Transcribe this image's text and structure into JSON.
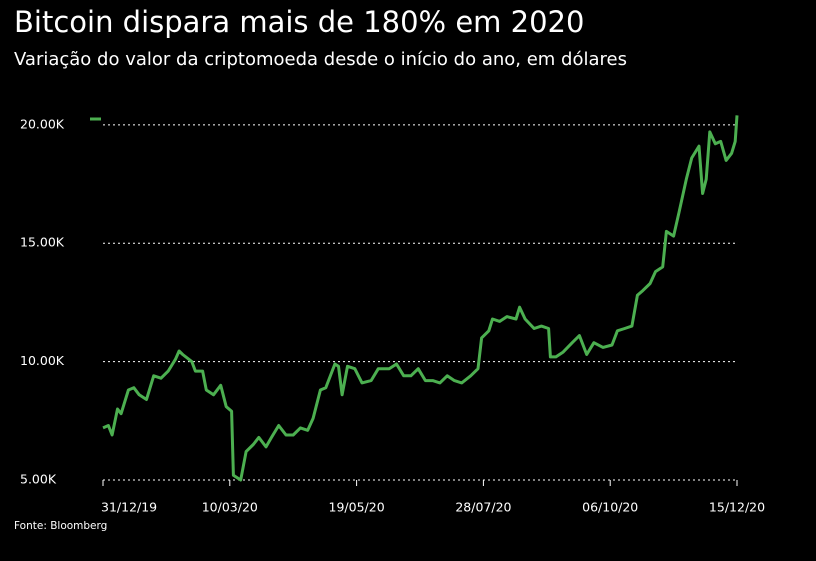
{
  "chart_data": {
    "type": "line",
    "title": "Bitcoin dispara mais de 180% em 2020",
    "subtitle": "Variação do valor da criptomoeda desde o início do ano, em dólares",
    "source": "Fonte: Bloomberg",
    "x": [
      "2019-12-31",
      "2020-01-03",
      "2020-01-05",
      "2020-01-08",
      "2020-01-10",
      "2020-01-14",
      "2020-01-17",
      "2020-01-20",
      "2020-01-24",
      "2020-01-28",
      "2020-02-01",
      "2020-02-05",
      "2020-02-09",
      "2020-02-11",
      "2020-02-13",
      "2020-02-18",
      "2020-02-20",
      "2020-02-24",
      "2020-02-26",
      "2020-03-01",
      "2020-03-05",
      "2020-03-08",
      "2020-03-11",
      "2020-03-12",
      "2020-03-16",
      "2020-03-19",
      "2020-03-23",
      "2020-03-26",
      "2020-03-30",
      "2020-04-02",
      "2020-04-06",
      "2020-04-10",
      "2020-04-14",
      "2020-04-18",
      "2020-04-22",
      "2020-04-25",
      "2020-04-29",
      "2020-05-02",
      "2020-05-07",
      "2020-05-09",
      "2020-05-11",
      "2020-05-14",
      "2020-05-18",
      "2020-05-22",
      "2020-05-27",
      "2020-05-31",
      "2020-06-03",
      "2020-06-06",
      "2020-06-10",
      "2020-06-14",
      "2020-06-18",
      "2020-06-22",
      "2020-06-26",
      "2020-06-30",
      "2020-07-04",
      "2020-07-08",
      "2020-07-12",
      "2020-07-16",
      "2020-07-21",
      "2020-07-25",
      "2020-07-27",
      "2020-07-31",
      "2020-08-02",
      "2020-08-06",
      "2020-08-10",
      "2020-08-15",
      "2020-08-17",
      "2020-08-20",
      "2020-08-25",
      "2020-08-29",
      "2020-09-02",
      "2020-09-03",
      "2020-09-06",
      "2020-09-10",
      "2020-09-15",
      "2020-09-19",
      "2020-09-23",
      "2020-09-27",
      "2020-10-02",
      "2020-10-07",
      "2020-10-10",
      "2020-10-14",
      "2020-10-18",
      "2020-10-21",
      "2020-10-24",
      "2020-10-28",
      "2020-10-31",
      "2020-11-04",
      "2020-11-06",
      "2020-11-10",
      "2020-11-13",
      "2020-11-17",
      "2020-11-20",
      "2020-11-24",
      "2020-11-26",
      "2020-11-28",
      "2020-11-30",
      "2020-12-03",
      "2020-12-06",
      "2020-12-09",
      "2020-12-12",
      "2020-12-14",
      "2020-12-15"
    ],
    "series": [
      {
        "color": "#4caf50",
        "values": [
          7200,
          7300,
          6900,
          8000,
          7800,
          8800,
          8900,
          8600,
          8400,
          9400,
          9300,
          9600,
          10100,
          10450,
          10300,
          10000,
          9600,
          9600,
          8800,
          8600,
          9000,
          8100,
          7900,
          5200,
          5000,
          6200,
          6500,
          6800,
          6400,
          6800,
          7300,
          6900,
          6900,
          7200,
          7100,
          7600,
          8800,
          8900,
          9900,
          9800,
          8600,
          9800,
          9700,
          9100,
          9200,
          9700,
          9700,
          9700,
          9900,
          9400,
          9400,
          9700,
          9200,
          9200,
          9100,
          9400,
          9200,
          9100,
          9400,
          9700,
          11000,
          11300,
          11800,
          11700,
          11900,
          11800,
          12300,
          11800,
          11400,
          11500,
          11400,
          10200,
          10200,
          10400,
          10800,
          11100,
          10300,
          10800,
          10600,
          10700,
          11300,
          11400,
          11500,
          12800,
          13000,
          13300,
          13800,
          14000,
          15500,
          15300,
          16300,
          17700,
          18600,
          19100,
          17100,
          17700,
          19700,
          19200,
          19300,
          18500,
          18800,
          19300,
          20400
        ]
      }
    ],
    "xlim": [
      "2019-12-31",
      "2020-12-15"
    ],
    "xticks": [
      {
        "value": "2019-12-31",
        "label": "31/12/19"
      },
      {
        "value": "2020-03-10",
        "label": "10/03/20"
      },
      {
        "value": "2020-05-19",
        "label": "19/05/20"
      },
      {
        "value": "2020-07-28",
        "label": "28/07/20"
      },
      {
        "value": "2020-10-06",
        "label": "06/10/20"
      },
      {
        "value": "2020-12-15",
        "label": "15/12/20"
      }
    ],
    "ylim": [
      5000,
      20500
    ],
    "yticks": [
      {
        "value": 5000,
        "label": "5.00K"
      },
      {
        "value": 10000,
        "label": "10.00K"
      },
      {
        "value": 15000,
        "label": "15.00K"
      },
      {
        "value": 20000,
        "label": "20.00K"
      }
    ],
    "grid": true
  }
}
